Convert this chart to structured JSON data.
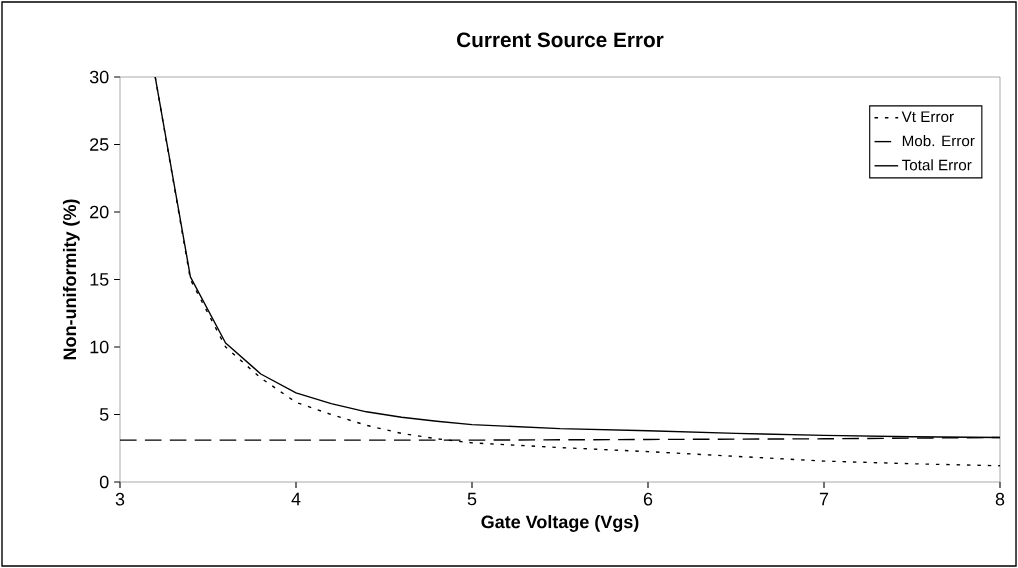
{
  "chart_data": {
    "type": "line",
    "title": "Current Source Error",
    "xlabel": "Gate Voltage (Vgs)",
    "ylabel": "Non-uniformity (%)",
    "xlim": [
      3,
      8
    ],
    "ylim": [
      0,
      30
    ],
    "xticks": [
      3,
      4,
      5,
      6,
      7,
      8
    ],
    "yticks": [
      0,
      5,
      10,
      15,
      20,
      25,
      30
    ],
    "legend": "top right",
    "grid": false,
    "marker": "none",
    "series": [
      {
        "name": "Vt Error",
        "color": "#000000",
        "line_style": "dotted",
        "x": [
          3.2,
          3.4,
          3.6,
          3.8,
          4.0,
          4.2,
          4.4,
          4.6,
          4.8,
          5.0,
          5.5,
          6.0,
          6.5,
          7.0,
          7.5,
          8.0
        ],
        "values": [
          30,
          15.0,
          10.0,
          7.7,
          5.9,
          5.0,
          4.2,
          3.6,
          3.2,
          2.9,
          2.55,
          2.25,
          1.9,
          1.55,
          1.35,
          1.2
        ]
      },
      {
        "name": "Mob. Error",
        "color": "#000000",
        "line_style": "dashed",
        "x": [
          3,
          4,
          5,
          6,
          7,
          8
        ],
        "values": [
          3.1,
          3.1,
          3.1,
          3.15,
          3.2,
          3.3
        ]
      },
      {
        "name": "Total Error",
        "color": "#000000",
        "line_style": "solid",
        "x": [
          3.2,
          3.4,
          3.6,
          3.8,
          4.0,
          4.2,
          4.4,
          4.6,
          4.8,
          5.0,
          5.5,
          6.0,
          6.5,
          7.0,
          7.5,
          8.0
        ],
        "values": [
          30,
          15.2,
          10.3,
          8.0,
          6.6,
          5.8,
          5.2,
          4.8,
          4.5,
          4.25,
          3.95,
          3.8,
          3.6,
          3.45,
          3.35,
          3.3
        ]
      }
    ]
  }
}
